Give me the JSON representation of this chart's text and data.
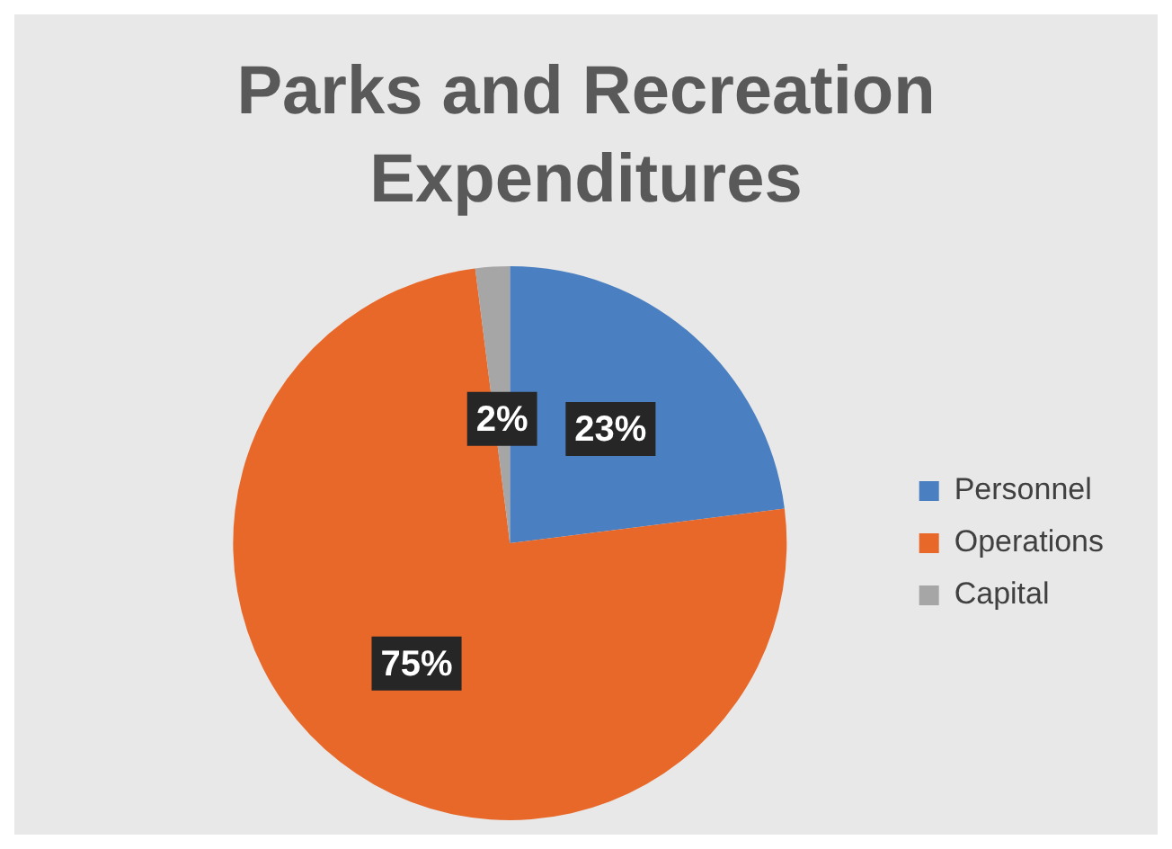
{
  "chart_data": {
    "type": "pie",
    "title": "Parks and Recreation Expenditures",
    "categories": [
      "Personnel",
      "Operations",
      "Capital"
    ],
    "values": [
      23,
      75,
      2
    ],
    "value_labels": [
      "23%",
      "75%",
      "2%"
    ],
    "colors": [
      "#4a7fc1",
      "#e8682a",
      "#a6a6a6"
    ],
    "legend": "right"
  }
}
